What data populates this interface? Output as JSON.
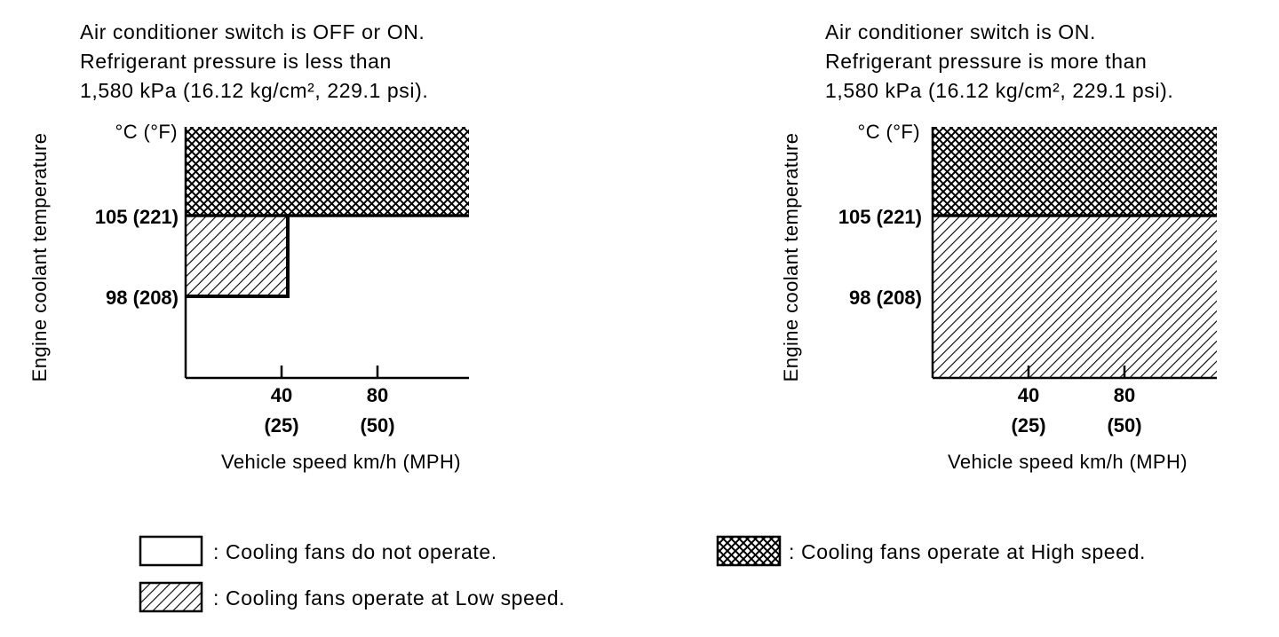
{
  "left_panel": {
    "caption": [
      "Air conditioner switch is OFF or ON.",
      "Refrigerant pressure is less than",
      "1,580 kPa (16.12 kg/cm², 229.1 psi)."
    ],
    "y_unit": "°C (°F)",
    "y_ticks": [
      "105 (221)",
      "98 (208)"
    ],
    "y_label": "Engine coolant temperature",
    "x_ticks": [
      {
        "kmh": "40",
        "mph": "(25)"
      },
      {
        "kmh": "80",
        "mph": "(50)"
      }
    ],
    "x_label": "Vehicle speed km/h (MPH)"
  },
  "right_panel": {
    "caption": [
      "Air conditioner switch is ON.",
      "Refrigerant pressure is more than",
      "1,580 kPa (16.12 kg/cm², 229.1 psi)."
    ],
    "y_unit": "°C (°F)",
    "y_ticks": [
      "105 (221)",
      "98 (208)"
    ],
    "y_label": "Engine coolant temperature",
    "x_ticks": [
      {
        "kmh": "40",
        "mph": "(25)"
      },
      {
        "kmh": "80",
        "mph": "(50)"
      }
    ],
    "x_label": "Vehicle speed km/h (MPH)"
  },
  "legend": {
    "off": ": Cooling fans do not operate.",
    "low": ": Cooling fans operate at Low speed.",
    "high": ": Cooling fans operate at High speed."
  }
}
